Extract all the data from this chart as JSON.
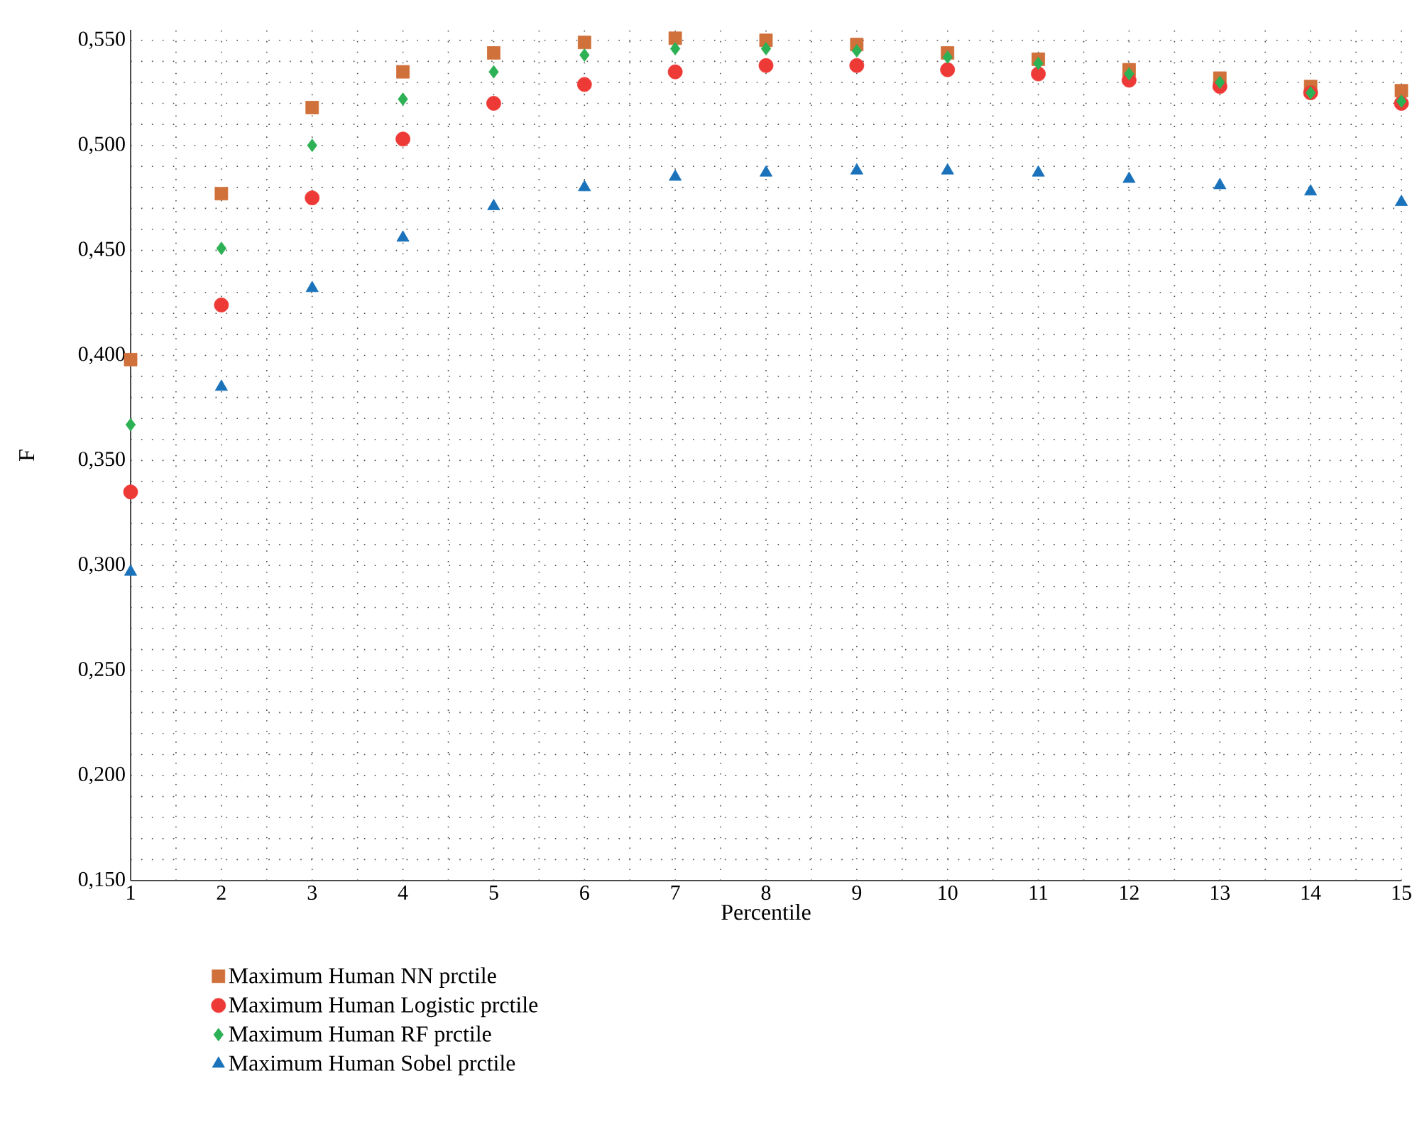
{
  "chart_data": {
    "type": "scatter",
    "xlabel": "Percentile",
    "ylabel": "F",
    "x": [
      1,
      2,
      3,
      4,
      5,
      6,
      7,
      8,
      9,
      10,
      11,
      12,
      13,
      14,
      15
    ],
    "series": [
      {
        "name": "Maximum Human NN prctile",
        "color": "#d0703a",
        "marker": "square",
        "values": [
          0.398,
          0.477,
          0.518,
          0.535,
          0.544,
          0.549,
          0.551,
          0.55,
          0.548,
          0.544,
          0.541,
          0.536,
          0.532,
          0.528,
          0.526
        ]
      },
      {
        "name": "Maximum Human Logistic prctile",
        "color": "#ee3a36",
        "marker": "circle",
        "values": [
          0.335,
          0.424,
          0.475,
          0.503,
          0.52,
          0.529,
          0.535,
          0.538,
          0.538,
          0.536,
          0.534,
          0.531,
          0.528,
          0.525,
          0.52
        ]
      },
      {
        "name": "Maximum Human RF prctile",
        "color": "#2db155",
        "marker": "diamond",
        "values": [
          0.367,
          0.451,
          0.5,
          0.522,
          0.535,
          0.543,
          0.546,
          0.546,
          0.545,
          0.542,
          0.539,
          0.534,
          0.53,
          0.525,
          0.521
        ]
      },
      {
        "name": "Maximum Human Sobel prctile",
        "color": "#1a72ba",
        "marker": "triangle",
        "values": [
          0.297,
          0.385,
          0.432,
          0.456,
          0.471,
          0.48,
          0.485,
          0.487,
          0.488,
          0.488,
          0.487,
          0.484,
          0.481,
          0.478,
          0.473
        ]
      }
    ],
    "xlim": [
      1,
      15
    ],
    "xticks": [
      1,
      2,
      3,
      4,
      5,
      6,
      7,
      8,
      9,
      10,
      11,
      12,
      13,
      14,
      15
    ],
    "ylim": [
      0.15,
      0.555
    ],
    "yticks": [
      {
        "value": 0.15,
        "label": "0,150"
      },
      {
        "value": 0.2,
        "label": "0,200"
      },
      {
        "value": 0.25,
        "label": "0,250"
      },
      {
        "value": 0.3,
        "label": "0,300"
      },
      {
        "value": 0.35,
        "label": "0,350"
      },
      {
        "value": 0.4,
        "label": "0,400"
      },
      {
        "value": 0.45,
        "label": "0,450"
      },
      {
        "value": 0.5,
        "label": "0,500"
      },
      {
        "value": 0.55,
        "label": "0,550"
      }
    ],
    "grid": true,
    "legend": "bottom left"
  }
}
